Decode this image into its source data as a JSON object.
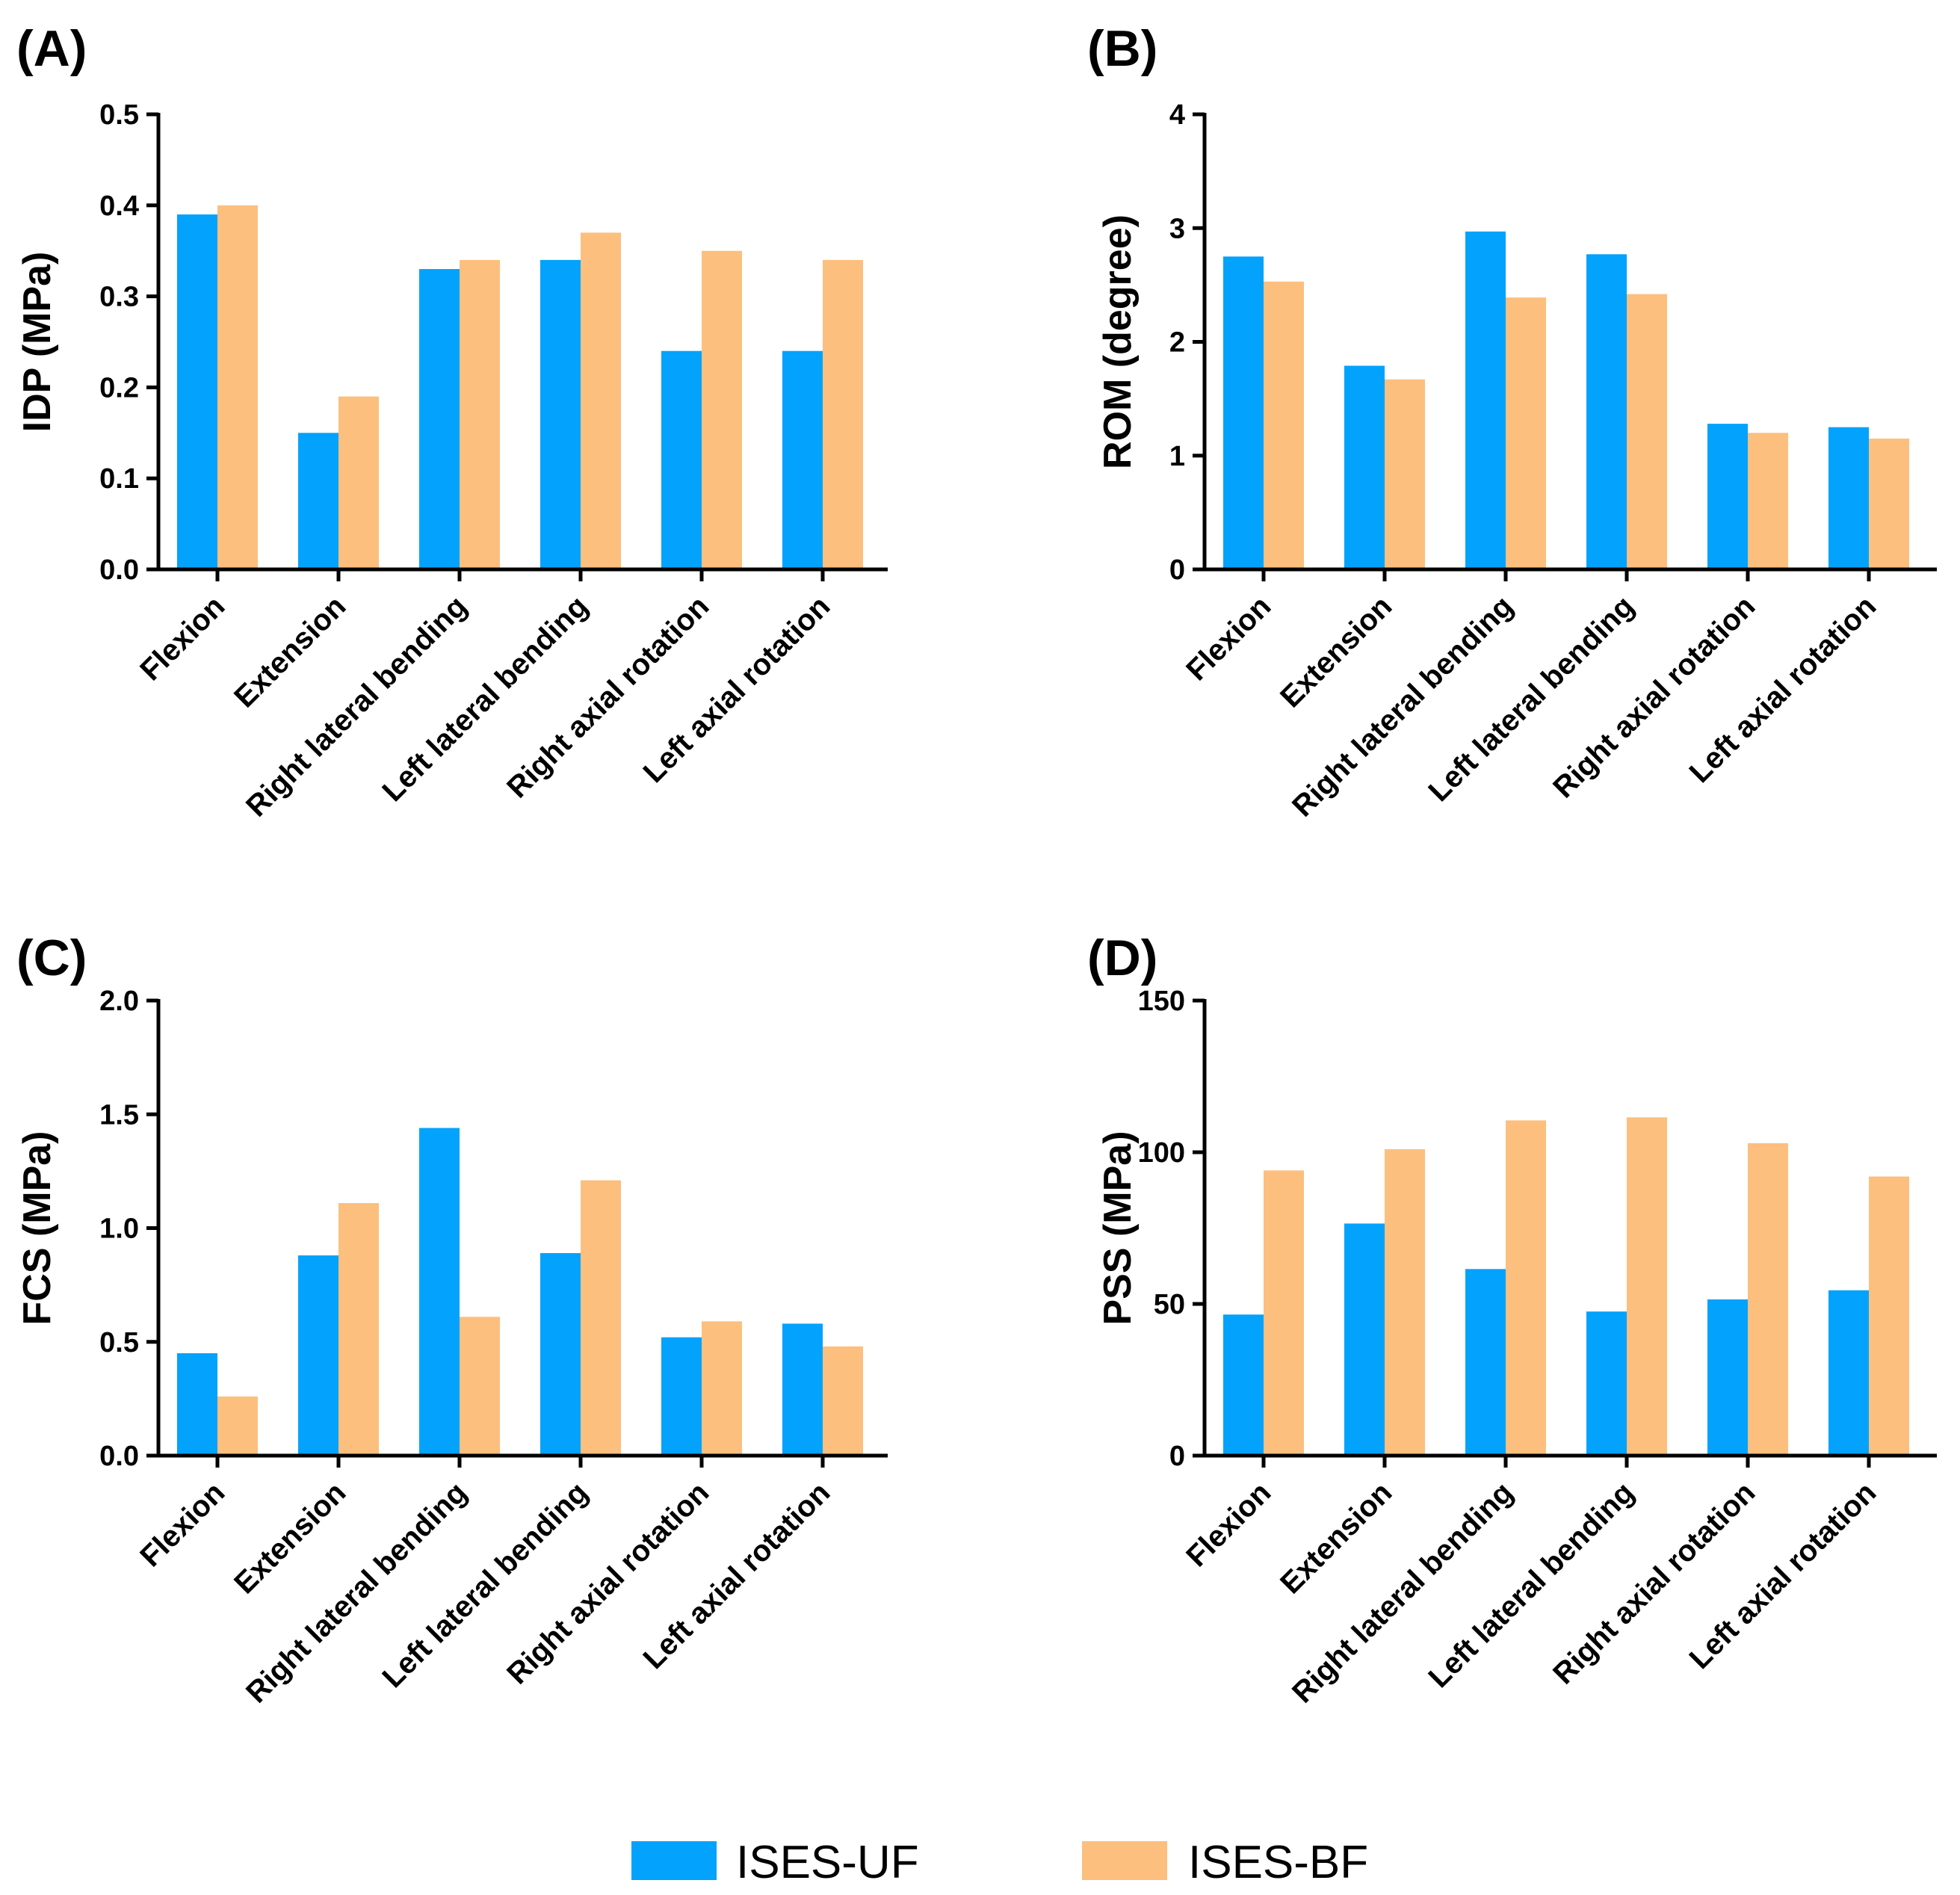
{
  "legend": [
    {
      "name": "ISES-UF",
      "color": "#03A2FC"
    },
    {
      "name": "ISES-BF",
      "color": "#FDBF7E"
    }
  ],
  "chart_data": [
    {
      "type": "bar",
      "panel": "(A)",
      "ylabel": "IDP (MPa)",
      "ylim": [
        0,
        0.5
      ],
      "yticks": [
        "0.0",
        "0.1",
        "0.2",
        "0.3",
        "0.4",
        "0.5"
      ],
      "categories": [
        "Flexion",
        "Extension",
        "Right lateral bending",
        "Left lateral bending",
        "Right axial rotation",
        "Left axial rotation"
      ],
      "series": [
        {
          "name": "ISES-UF",
          "values": [
            0.39,
            0.15,
            0.33,
            0.34,
            0.24,
            0.24
          ]
        },
        {
          "name": "ISES-BF",
          "values": [
            0.4,
            0.19,
            0.34,
            0.37,
            0.35,
            0.34
          ]
        }
      ]
    },
    {
      "type": "bar",
      "panel": "(B)",
      "ylabel": "ROM (degree)",
      "ylim": [
        0,
        4
      ],
      "yticks": [
        "0",
        "1",
        "2",
        "3",
        "4"
      ],
      "categories": [
        "Flexion",
        "Extension",
        "Right lateral bending",
        "Left lateral bending",
        "Right axial rotation",
        "Left axial rotation"
      ],
      "series": [
        {
          "name": "ISES-UF",
          "values": [
            2.75,
            1.79,
            2.97,
            2.77,
            1.28,
            1.25
          ]
        },
        {
          "name": "ISES-BF",
          "values": [
            2.53,
            1.67,
            2.39,
            2.42,
            1.2,
            1.15
          ]
        }
      ]
    },
    {
      "type": "bar",
      "panel": "(C)",
      "ylabel": "FCS (MPa)",
      "ylim": [
        0,
        2.0
      ],
      "yticks": [
        "0.0",
        "0.5",
        "1.0",
        "1.5",
        "2.0"
      ],
      "categories": [
        "Flexion",
        "Extension",
        "Right lateral bending",
        "Left lateral bending",
        "Right axial rotation",
        "Left axial rotation"
      ],
      "series": [
        {
          "name": "ISES-UF",
          "values": [
            0.45,
            0.88,
            1.44,
            0.89,
            0.52,
            0.58
          ]
        },
        {
          "name": "ISES-BF",
          "values": [
            0.26,
            1.11,
            0.61,
            1.21,
            0.59,
            0.48
          ]
        }
      ]
    },
    {
      "type": "bar",
      "panel": "(D)",
      "ylabel": "PSS (MPa)",
      "ylim": [
        0,
        150
      ],
      "yticks": [
        "0",
        "50",
        "100",
        "150"
      ],
      "categories": [
        "Flexion",
        "Extension",
        "Right lateral bending",
        "Left lateral bending",
        "Right axial rotation",
        "Left axial rotation"
      ],
      "series": [
        {
          "name": "ISES-UF",
          "values": [
            46.5,
            76.5,
            61.5,
            47.5,
            51.5,
            54.5
          ]
        },
        {
          "name": "ISES-BF",
          "values": [
            94.0,
            101.0,
            110.5,
            111.5,
            103.0,
            92.0
          ]
        }
      ]
    }
  ]
}
